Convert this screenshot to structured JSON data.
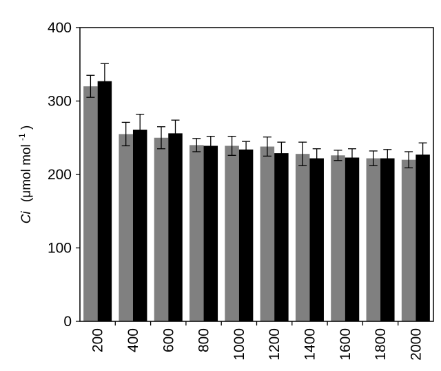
{
  "chart_data": {
    "type": "bar",
    "categories": [
      "200",
      "400",
      "600",
      "800",
      "1000",
      "1200",
      "1400",
      "1600",
      "1800",
      "2000"
    ],
    "series": [
      {
        "color": "#808080",
        "values": [
          320,
          255,
          250,
          240,
          239,
          238,
          228,
          226,
          222,
          220
        ],
        "errors": [
          15,
          16,
          15,
          9,
          13,
          13,
          16,
          7,
          10,
          11
        ]
      },
      {
        "color": "#000000",
        "values": [
          327,
          261,
          256,
          239,
          234,
          229,
          222,
          223,
          222,
          227
        ],
        "errors": [
          24,
          21,
          18,
          13,
          11,
          15,
          13,
          12,
          12,
          16
        ]
      }
    ],
    "ylabel_italic": "Ci",
    "ylabel_unit": "(μmol mol",
    "ylabel_sup": "-1",
    "ylabel_close": ")",
    "ylim": [
      0,
      400
    ],
    "yticks": [
      "0",
      "100",
      "200",
      "300",
      "400"
    ],
    "grid": false,
    "legend": "none"
  }
}
